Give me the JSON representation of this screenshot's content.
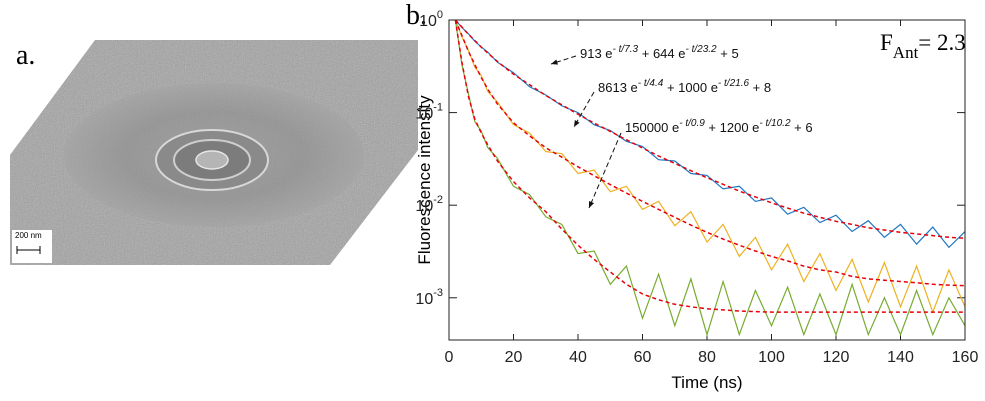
{
  "panel_a": {
    "label": "a.",
    "scale_bar": "200 nm"
  },
  "chart_data": {
    "type": "line",
    "panel_label": "b.",
    "xlabel": "Time (ns)",
    "ylabel": "Fluorescence intensity",
    "corner_label": {
      "main": "F",
      "sub": "Ant",
      "rest": "= 2.3"
    },
    "log_y": true,
    "xlim": [
      0,
      160
    ],
    "xticks": [
      0,
      20,
      40,
      60,
      80,
      100,
      120,
      140,
      160
    ],
    "ylim": [
      0.00035,
      1
    ],
    "yticks": [
      {
        "value": 0.001,
        "label": "10",
        "exponent": "-3"
      },
      {
        "value": 0.01,
        "label": "10",
        "exponent": "-2"
      },
      {
        "value": 0.1,
        "label": "10",
        "exponent": "-1"
      },
      {
        "value": 1,
        "label": "10",
        "exponent": "0"
      }
    ],
    "x": [
      2,
      4,
      6,
      8,
      10,
      12,
      15,
      20,
      25,
      30,
      35,
      40,
      45,
      50,
      55,
      60,
      65,
      70,
      75,
      80,
      85,
      90,
      95,
      100,
      105,
      110,
      115,
      120,
      125,
      130,
      135,
      140,
      145,
      150,
      155,
      160
    ],
    "series": [
      {
        "color": "#1f77c4",
        "line_style": "solid",
        "values": [
          1.0,
          0.83,
          0.71,
          0.59,
          0.51,
          0.45,
          0.35,
          0.27,
          0.19,
          0.155,
          0.118,
          0.1,
          0.074,
          0.064,
          0.049,
          0.043,
          0.031,
          0.03,
          0.022,
          0.021,
          0.015,
          0.016,
          0.011,
          0.012,
          0.008,
          0.0095,
          0.0065,
          0.0078,
          0.0052,
          0.0068,
          0.0045,
          0.0062,
          0.0038,
          0.0058,
          0.0035,
          0.0052
        ]
      },
      {
        "color": "#edb120",
        "line_style": "solid",
        "values": [
          1.0,
          0.66,
          0.47,
          0.31,
          0.25,
          0.17,
          0.13,
          0.074,
          0.06,
          0.038,
          0.036,
          0.022,
          0.024,
          0.014,
          0.016,
          0.009,
          0.011,
          0.006,
          0.0085,
          0.004,
          0.0062,
          0.0028,
          0.0045,
          0.002,
          0.0038,
          0.0015,
          0.003,
          0.0012,
          0.0026,
          0.0009,
          0.0024,
          0.0008,
          0.0022,
          0.0007,
          0.002,
          0.0008
        ]
      },
      {
        "color": "#77ac30",
        "line_style": "solid",
        "values": [
          1.0,
          0.33,
          0.16,
          0.08,
          0.063,
          0.042,
          0.032,
          0.016,
          0.013,
          0.0075,
          0.0062,
          0.003,
          0.0032,
          0.0014,
          0.0022,
          0.0006,
          0.0018,
          0.0005,
          0.0016,
          0.0004,
          0.0015,
          0.0004,
          0.0012,
          0.0005,
          0.0013,
          0.0004,
          0.0011,
          0.0004,
          0.0014,
          0.0004,
          0.001,
          0.0004,
          0.0012,
          0.0004,
          0.001,
          0.0005
        ]
      },
      {
        "color": "#e8000b",
        "line_style": "dashed",
        "annotation": [
          "913 e",
          "- t/7.3",
          " + 644 e",
          "- t/23.2",
          " + 5"
        ],
        "values": [
          1.0,
          0.84,
          0.7,
          0.6,
          0.508,
          0.44,
          0.356,
          0.26,
          0.2,
          0.153,
          0.121,
          0.096,
          0.077,
          0.0626,
          0.051,
          0.0415,
          0.034,
          0.0283,
          0.0236,
          0.0198,
          0.0168,
          0.0142,
          0.0123,
          0.0106,
          0.0093,
          0.0082,
          0.0074,
          0.0067,
          0.0062,
          0.0057,
          0.0054,
          0.0051,
          0.0049,
          0.0047,
          0.0045,
          0.0044
        ]
      },
      {
        "color": "#e8000b",
        "line_style": "dashed",
        "annotation": [
          "8613 e",
          "- t/4.4",
          " + 1000 e",
          "- t/21.6",
          " + 8"
        ],
        "values": [
          1.0,
          0.68,
          0.46,
          0.33,
          0.239,
          0.18,
          0.124,
          0.0775,
          0.056,
          0.0417,
          0.033,
          0.026,
          0.0208,
          0.0167,
          0.0135,
          0.011,
          0.009,
          0.0074,
          0.0061,
          0.0051,
          0.0043,
          0.0037,
          0.0032,
          0.0028,
          0.0025,
          0.0022,
          0.002,
          0.0019,
          0.0017,
          0.0016,
          0.00155,
          0.0015,
          0.00145,
          0.0014,
          0.00137,
          0.00135
        ]
      },
      {
        "color": "#e8000b",
        "line_style": "dashed",
        "annotation": [
          "150000 e",
          "- t/0.9",
          " + 1200 e",
          "- t/10.2",
          " + 6"
        ],
        "values": [
          1.0,
          0.35,
          0.15,
          0.085,
          0.06,
          0.045,
          0.03,
          0.018,
          0.012,
          0.0085,
          0.0055,
          0.0037,
          0.0026,
          0.0019,
          0.0014,
          0.0011,
          0.00095,
          0.00085,
          0.0008,
          0.00076,
          0.00074,
          0.00072,
          0.00071,
          0.0007,
          0.0007,
          0.0007,
          0.0007,
          0.0007,
          0.0007,
          0.0007,
          0.0007,
          0.0007,
          0.0007,
          0.0007,
          0.0007,
          0.0007
        ]
      }
    ]
  }
}
